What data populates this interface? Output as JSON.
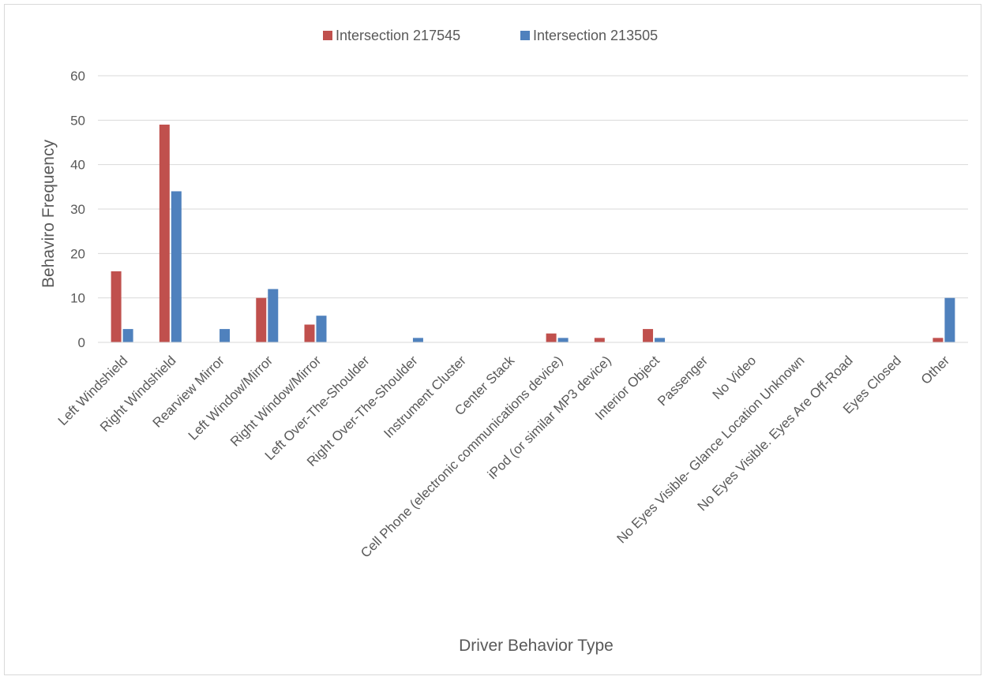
{
  "chart_data": {
    "type": "bar",
    "title": "",
    "xlabel": "Driver Behavior Type",
    "ylabel": "Behaviro Frequency",
    "ylim": [
      0,
      60
    ],
    "yticks": [
      0,
      10,
      20,
      30,
      40,
      50,
      60
    ],
    "grid": true,
    "legend_position": "top",
    "categories": [
      "Left Windshield",
      "Right Windshield",
      "Rearview Mirror",
      "Left Window/Mirror",
      "Right Window/Mirror",
      "Left Over-The-Shoulder",
      "Right Over-The-Shoulder",
      "Instrument Cluster",
      "Center Stack",
      "Cell Phone (electronic communications device)",
      "iPod (or similar MP3 device)",
      "Interior Object",
      "Passenger",
      "No Video",
      "No Eyes Visible- Glance Location Unknown",
      "No Eyes Visible. Eyes Are Off-Road",
      "Eyes Closed",
      "Other"
    ],
    "series": [
      {
        "name": "Intersection 217545",
        "color": "#c0504d",
        "values": [
          16,
          49,
          0,
          10,
          4,
          0,
          0,
          0,
          0,
          2,
          1,
          3,
          0,
          0,
          0,
          0,
          0,
          1
        ]
      },
      {
        "name": "Intersection 213505",
        "color": "#4f81bd",
        "values": [
          3,
          34,
          3,
          12,
          6,
          0,
          1,
          0,
          0,
          1,
          0,
          1,
          0,
          0,
          0,
          0,
          0,
          10
        ]
      }
    ]
  }
}
